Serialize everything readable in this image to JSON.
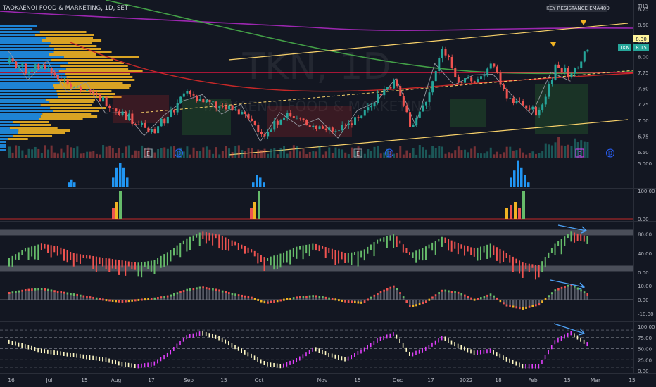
{
  "header": {
    "symbol_info": "TAOKAENOI FOOD & MARKETING, 1D, SET",
    "currency": "THB"
  },
  "watermark": {
    "ticker": "TKN, 1D",
    "name": "TAOKAENOI FOOD & MARKETING"
  },
  "annotations": {
    "key_resistance": "KEY RESISTANCE EMA400",
    "ticker_tag": "TKN"
  },
  "price_tags": {
    "high_label": "8.30",
    "last_label": "8.15"
  },
  "event_markers": [
    "E",
    "D",
    "E",
    "D",
    "E",
    "D"
  ],
  "colors": {
    "bull": "#26a69a",
    "bear": "#ef5350",
    "ema400": "#9c27b0",
    "ema200": "#43a047",
    "resistance": "#ff1744",
    "channel": "#f9d26b",
    "vp_blue": "#2196f3",
    "vp_orange": "#f0b323",
    "arrow": "#4fa3f7"
  },
  "x_axis": {
    "labels": [
      "16",
      "Jul",
      "15",
      "Aug",
      "17",
      "Sep",
      "15",
      "Oct",
      "Nov",
      "15",
      "Dec",
      "17",
      "2022",
      "18",
      "Feb",
      "15",
      "Mar",
      "15"
    ]
  },
  "chart_data": [
    {
      "type": "line",
      "title": "TKN, 1D",
      "panel": "price",
      "y_ticks": [
        "8.75",
        "8.50",
        "8.25",
        "8.00",
        "7.75",
        "7.50",
        "7.25",
        "7.00",
        "6.75",
        "6.50"
      ],
      "ylim": [
        6.4,
        8.8
      ],
      "resistance_level": 7.72,
      "last_price": 8.15,
      "high_price": 8.3,
      "x_dates": [
        "Jun 14",
        "Jun 21",
        "Jun 28",
        "Jul 5",
        "Jul 12",
        "Jul 19",
        "Jul 26",
        "Aug 2",
        "Aug 9",
        "Aug 16",
        "Aug 23",
        "Aug 30",
        "Sep 6",
        "Sep 13",
        "Sep 20",
        "Sep 27",
        "Oct 4",
        "Oct 11",
        "Oct 18",
        "Oct 25",
        "Nov 1",
        "Nov 8",
        "Nov 15",
        "Nov 22",
        "Nov 29",
        "Dec 6",
        "Dec 13",
        "Dec 20",
        "Dec 27",
        "Jan 3",
        "Jan 10",
        "Jan 17",
        "Jan 24",
        "Jan 31",
        "Feb 7",
        "Feb 14",
        "Feb 21"
      ],
      "series": [
        {
          "values": [
            7.9,
            7.8,
            7.85,
            7.7,
            7.55,
            7.4,
            7.3,
            7.1,
            6.95,
            6.85,
            7.1,
            7.45,
            7.3,
            7.2,
            7.15,
            7.0,
            6.75,
            7.1,
            7.0,
            6.9,
            6.85,
            6.95,
            7.1,
            7.4,
            7.6,
            6.9,
            7.3,
            8.15,
            7.6,
            7.6,
            7.85,
            7.4,
            7.2,
            7.1,
            7.85,
            7.7,
            8.15
          ]
        }
      ]
    },
    {
      "type": "bar",
      "panel": "volume-histogram",
      "y_ticks": [
        "5.000"
      ],
      "categories": [
        "Jul",
        "Aug",
        "Aug",
        "Aug",
        "Aug",
        "Aug",
        "Aug",
        "Aug",
        "Oct",
        "Oct",
        "Oct",
        "Oct",
        "Feb",
        "Feb",
        "Feb",
        "Feb",
        "Feb",
        "Feb"
      ],
      "values": [
        1,
        1.5,
        1,
        2,
        4,
        5,
        4,
        2,
        1,
        2.5,
        2,
        1,
        2,
        3.5,
        5.5,
        4,
        2.5,
        1
      ]
    },
    {
      "type": "bar",
      "panel": "signal",
      "y_ticks": [
        "100.00",
        "0.00"
      ],
      "categories": [
        "Aug",
        "Aug",
        "Aug",
        "Oct",
        "Oct",
        "Oct",
        "Feb",
        "Feb",
        "Feb",
        "Feb",
        "Feb"
      ],
      "values": [
        40,
        60,
        100,
        40,
        60,
        100,
        40,
        50,
        60,
        40,
        100
      ]
    },
    {
      "type": "bar",
      "panel": "oscillator-1",
      "y_ticks": [
        "80.00",
        "40.00",
        "0.00"
      ],
      "ylim": [
        0,
        100
      ],
      "categories": [
        "Jun 14",
        "Jun 21",
        "Jun 28",
        "Jul 5",
        "Jul 12",
        "Jul 19",
        "Jul 26",
        "Aug 2",
        "Aug 9",
        "Aug 16",
        "Aug 23",
        "Aug 30",
        "Sep 6",
        "Sep 13",
        "Sep 20",
        "Sep 27",
        "Oct 4",
        "Oct 11",
        "Oct 18",
        "Oct 25",
        "Nov 1",
        "Nov 8",
        "Nov 15",
        "Nov 22",
        "Nov 29",
        "Dec 6",
        "Dec 13",
        "Dec 20",
        "Dec 27",
        "Jan 3",
        "Jan 10",
        "Jan 17",
        "Jan 24",
        "Jan 31",
        "Feb 7",
        "Feb 14",
        "Feb 21"
      ],
      "values": [
        30,
        50,
        60,
        55,
        40,
        35,
        30,
        25,
        20,
        25,
        45,
        70,
        85,
        80,
        65,
        50,
        30,
        40,
        55,
        60,
        50,
        40,
        45,
        70,
        80,
        40,
        55,
        75,
        60,
        50,
        60,
        40,
        20,
        15,
        60,
        85,
        75
      ]
    },
    {
      "type": "bar",
      "panel": "oscillator-2",
      "y_ticks": [
        "10.00",
        "0.00",
        "-10.00"
      ],
      "ylim": [
        -15,
        12
      ],
      "categories": [
        "Jun 14",
        "Jun 21",
        "Jun 28",
        "Jul 5",
        "Jul 12",
        "Jul 19",
        "Jul 26",
        "Aug 2",
        "Aug 9",
        "Aug 16",
        "Aug 23",
        "Aug 30",
        "Sep 6",
        "Sep 13",
        "Sep 20",
        "Sep 27",
        "Oct 4",
        "Oct 11",
        "Oct 18",
        "Oct 25",
        "Nov 1",
        "Nov 8",
        "Nov 15",
        "Nov 22",
        "Nov 29",
        "Dec 6",
        "Dec 13",
        "Dec 20",
        "Dec 27",
        "Jan 3",
        "Jan 10",
        "Jan 17",
        "Jan 24",
        "Jan 31",
        "Feb 7",
        "Feb 14",
        "Feb 21"
      ],
      "values": [
        4,
        6,
        7,
        5,
        3,
        1,
        -1,
        -2,
        -1,
        0,
        2,
        6,
        8,
        6,
        3,
        1,
        -3,
        -1,
        1,
        2,
        0,
        -2,
        -3,
        4,
        9,
        -6,
        -2,
        6,
        4,
        -1,
        3,
        -5,
        -7,
        -4,
        6,
        10,
        3
      ]
    },
    {
      "type": "bar",
      "panel": "oscillator-3",
      "y_ticks": [
        "100.00",
        "75.00",
        "50.00",
        "25.00",
        "0.00"
      ],
      "ylim": [
        0,
        100
      ],
      "categories": [
        "Jun 14",
        "Jun 21",
        "Jun 28",
        "Jul 5",
        "Jul 12",
        "Jul 19",
        "Jul 26",
        "Aug 2",
        "Aug 9",
        "Aug 16",
        "Aug 23",
        "Aug 30",
        "Sep 6",
        "Sep 13",
        "Sep 20",
        "Sep 27",
        "Oct 4",
        "Oct 11",
        "Oct 18",
        "Oct 25",
        "Nov 1",
        "Nov 8",
        "Nov 15",
        "Nov 22",
        "Nov 29",
        "Dec 6",
        "Dec 13",
        "Dec 20",
        "Dec 27",
        "Jan 3",
        "Jan 10",
        "Jan 17",
        "Jan 24",
        "Jan 31",
        "Feb 7",
        "Feb 14",
        "Feb 21"
      ],
      "values": [
        70,
        60,
        50,
        45,
        40,
        35,
        30,
        20,
        15,
        20,
        45,
        80,
        90,
        80,
        60,
        40,
        20,
        15,
        30,
        55,
        40,
        30,
        50,
        75,
        88,
        40,
        55,
        80,
        60,
        45,
        50,
        30,
        15,
        15,
        70,
        90,
        65
      ]
    }
  ]
}
